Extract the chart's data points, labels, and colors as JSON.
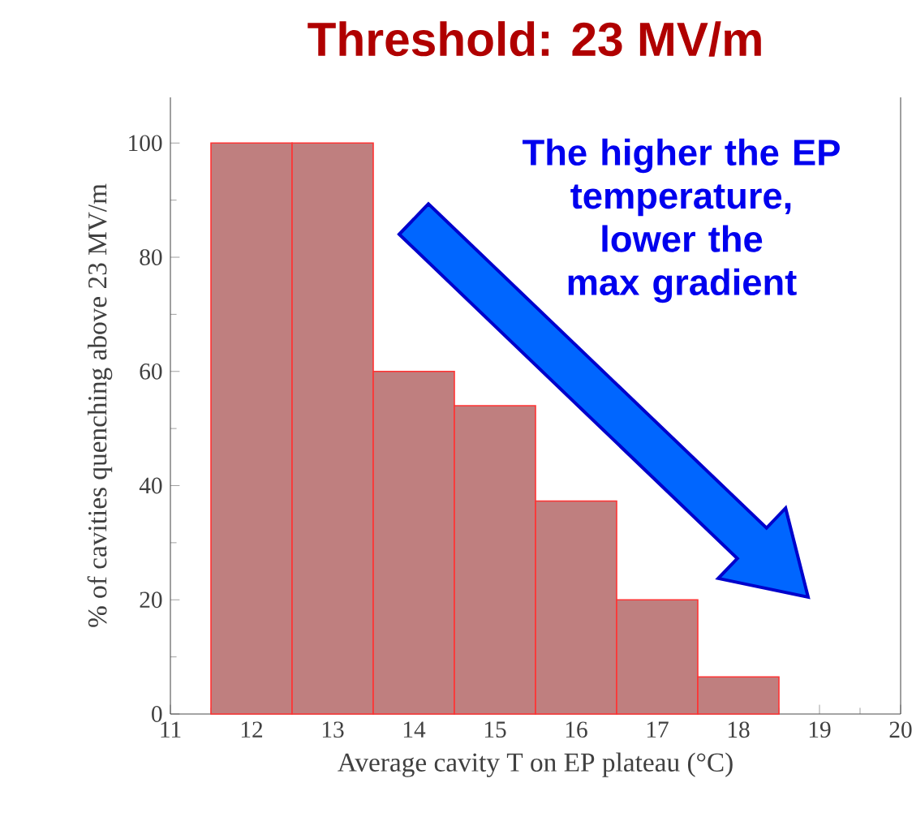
{
  "chart_data": {
    "type": "histogram",
    "title": "Threshold: 23 MV/m",
    "xlabel": "Average cavity T on EP plateau (°C)",
    "ylabel": "% of cavities quenching above 23 MV/m",
    "annotations": [
      "The higher the EP temperature, lower the max gradient"
    ],
    "bins": [
      11.5,
      12.5,
      13.5,
      14.5,
      15.5,
      16.5,
      17.5,
      18.5
    ],
    "values": [
      100,
      100,
      60,
      54,
      37.3,
      20,
      6.5
    ],
    "color": "#bf7f7f",
    "xlim": [
      11,
      20
    ],
    "xticks": [
      11,
      12,
      13,
      14,
      15,
      16,
      17,
      18,
      19,
      20
    ],
    "ylim": [
      0,
      108
    ],
    "yticks": [
      0,
      20,
      40,
      60,
      80,
      100
    ]
  }
}
